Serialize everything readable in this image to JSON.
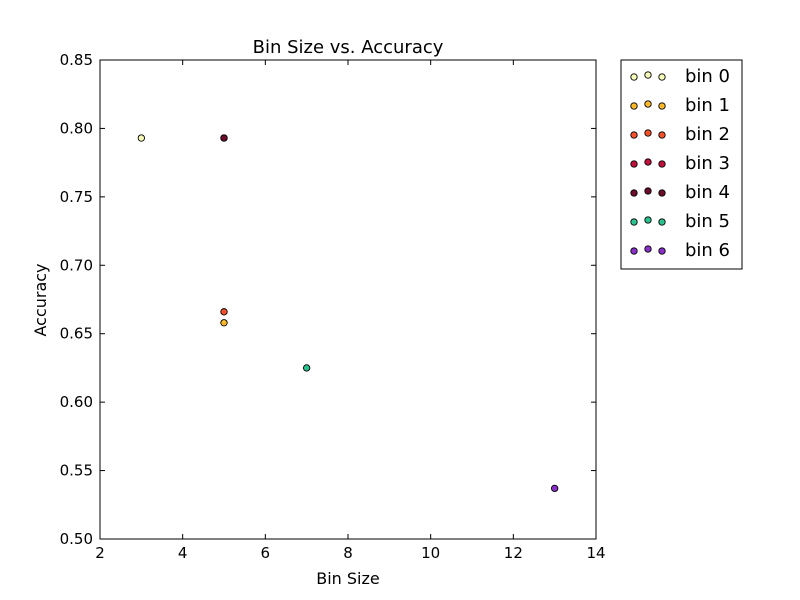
{
  "chart_data": {
    "type": "scatter",
    "title": "Bin Size vs. Accuracy",
    "xlabel": "Bin Size",
    "ylabel": "Accuracy",
    "xlim": [
      2,
      14
    ],
    "ylim": [
      0.5,
      0.85
    ],
    "xticks": [
      2,
      4,
      6,
      8,
      10,
      12,
      14
    ],
    "yticks": [
      0.5,
      0.55,
      0.6,
      0.65,
      0.7,
      0.75,
      0.8,
      0.85
    ],
    "xtick_labels": [
      "2",
      "4",
      "6",
      "8",
      "10",
      "12",
      "14"
    ],
    "ytick_labels": [
      "0.50",
      "0.55",
      "0.60",
      "0.65",
      "0.70",
      "0.75",
      "0.80",
      "0.85"
    ],
    "grid": false,
    "legend_position": "outside-right",
    "series": [
      {
        "name": "bin 0",
        "color": "#f7fcb9",
        "points": [
          {
            "x": 3,
            "y": 0.793
          }
        ]
      },
      {
        "name": "bin 1",
        "color": "#fdb92a",
        "points": [
          {
            "x": 5,
            "y": 0.658
          }
        ]
      },
      {
        "name": "bin 2",
        "color": "#f5512a",
        "points": [
          {
            "x": 5,
            "y": 0.666
          }
        ]
      },
      {
        "name": "bin 3",
        "color": "#c2103d",
        "points": [
          {
            "x": 5,
            "y": 0.793
          }
        ]
      },
      {
        "name": "bin 4",
        "color": "#6b0c28",
        "points": [
          {
            "x": 5,
            "y": 0.793
          }
        ]
      },
      {
        "name": "bin 5",
        "color": "#2ac090",
        "points": [
          {
            "x": 7,
            "y": 0.625
          }
        ]
      },
      {
        "name": "bin 6",
        "color": "#8a2fc8",
        "points": [
          {
            "x": 13,
            "y": 0.537
          }
        ]
      }
    ]
  }
}
